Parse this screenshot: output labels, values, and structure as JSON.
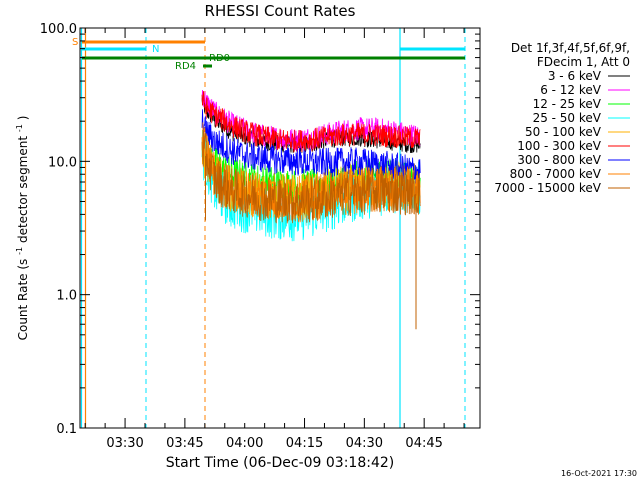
{
  "chart_data": {
    "type": "line",
    "title": "RHESSI Count Rates",
    "xlabel": "Start Time (06-Dec-09 03:18:42)",
    "ylabel_main": "Count Rate (s",
    "ylabel_sup1": "-1",
    "ylabel_mid": " detector segment",
    "ylabel_sup2": "-1",
    "ylabel_end": ")",
    "y_scale": "log",
    "ylim": [
      0.1,
      100.0
    ],
    "y_ticks": [
      {
        "value": 0.1,
        "label": "0.1"
      },
      {
        "value": 1.0,
        "label": "1.0"
      },
      {
        "value": 10.0,
        "label": "10.0"
      },
      {
        "value": 100.0,
        "label": "100.0"
      }
    ],
    "x_unit": "minutes after 03:18:42",
    "xlim": [
      0,
      100.3
    ],
    "x_ticks": [
      {
        "value": 11.3,
        "label": "03:30"
      },
      {
        "value": 26.3,
        "label": "03:45"
      },
      {
        "value": 41.3,
        "label": "04:00"
      },
      {
        "value": 56.3,
        "label": "04:15"
      },
      {
        "value": 71.3,
        "label": "04:30"
      },
      {
        "value": 86.3,
        "label": "04:45"
      }
    ],
    "grid": false,
    "legend_placement": "right",
    "legend_header": [
      "Det 1f,3f,4f,5f,6f,9f,",
      "FDecim 1, Att 0"
    ],
    "data_start": 30.6,
    "data_end": 85.3,
    "series": [
      {
        "name": "3 - 6 keV",
        "color": "#000000",
        "x": [
          31,
          34,
          38,
          42,
          46,
          50,
          54,
          58,
          62,
          66,
          70,
          74,
          78,
          82,
          85
        ],
        "y": [
          25,
          20,
          16.5,
          15,
          14,
          13.5,
          13.3,
          13.5,
          14.5,
          15,
          15,
          14.5,
          14,
          13.5,
          13.2
        ]
      },
      {
        "name": "6 - 12 keV",
        "color": "#ff00ff",
        "x": [
          31,
          34,
          38,
          42,
          46,
          50,
          54,
          58,
          62,
          66,
          70,
          74,
          78,
          82,
          85
        ],
        "y": [
          29,
          23,
          19,
          17,
          15.5,
          15,
          14.5,
          15,
          16,
          17,
          17.5,
          17.5,
          17,
          16,
          15.5
        ]
      },
      {
        "name": "12 - 25 keV",
        "color": "#00ff00",
        "x": [
          31,
          34,
          38,
          42,
          46,
          50,
          54,
          58,
          62,
          66,
          70,
          74,
          78,
          82,
          85
        ],
        "y": [
          12.5,
          9.5,
          8,
          7.5,
          7,
          6.8,
          6.5,
          6.5,
          6.8,
          7.2,
          7.5,
          7.8,
          7.8,
          7.5,
          7.3
        ]
      },
      {
        "name": "25 - 50 keV",
        "color": "#00ffff",
        "x": [
          31,
          34,
          38,
          42,
          46,
          50,
          54,
          58,
          62,
          66,
          70,
          74,
          78,
          82,
          85
        ],
        "y": [
          10.5,
          6,
          4.8,
          4.5,
          4.2,
          4.0,
          3.9,
          4.1,
          4.6,
          5.1,
          5.6,
          6.0,
          6.2,
          6.3,
          6.3
        ]
      },
      {
        "name": "50 - 100 keV",
        "color": "#ffb000",
        "x": [
          31,
          34,
          38,
          42,
          46,
          50,
          54,
          58,
          62,
          66,
          70,
          74,
          78,
          82,
          85
        ],
        "y": [
          11,
          7.5,
          6.2,
          5.8,
          5.6,
          5.5,
          5.4,
          5.5,
          5.9,
          6.3,
          6.6,
          6.8,
          6.8,
          6.7,
          6.6
        ]
      },
      {
        "name": "100 - 300 keV",
        "color": "#ff0000",
        "x": [
          31,
          34,
          38,
          42,
          46,
          50,
          54,
          58,
          62,
          66,
          70,
          74,
          78,
          82,
          85
        ],
        "y": [
          26,
          22,
          18.5,
          16.5,
          15.2,
          14.5,
          14.2,
          14.5,
          15.2,
          15.8,
          16,
          15.8,
          15.5,
          15,
          14.8
        ]
      },
      {
        "name": "300 - 800 keV",
        "color": "#0000ff",
        "x": [
          31,
          34,
          38,
          42,
          46,
          50,
          54,
          58,
          62,
          66,
          70,
          74,
          78,
          82,
          85
        ],
        "y": [
          17.5,
          14,
          12,
          11,
          10.5,
          10.2,
          10,
          9.8,
          9.8,
          9.9,
          9.9,
          9.6,
          9.2,
          8.8,
          8.6
        ]
      },
      {
        "name": "800 - 7000 keV",
        "color": "#ff8000",
        "x": [
          31,
          34,
          38,
          42,
          46,
          50,
          54,
          58,
          62,
          66,
          70,
          74,
          78,
          82,
          85
        ],
        "y": [
          12,
          7.5,
          6.2,
          5.8,
          5.5,
          5.3,
          5.2,
          5.3,
          5.6,
          5.9,
          6.1,
          6.2,
          6.2,
          6.1,
          5.9
        ]
      },
      {
        "name": "7000 - 15000 keV",
        "color": "#c06000",
        "x": [
          31,
          34,
          38,
          42,
          46,
          50,
          54,
          58,
          62,
          66,
          70,
          74,
          78,
          82,
          85
        ],
        "y": [
          11.5,
          7.2,
          6.0,
          5.6,
          5.3,
          5.1,
          5.0,
          5.1,
          5.4,
          5.7,
          5.9,
          6.0,
          6.0,
          5.9,
          5.7
        ]
      }
    ],
    "annotations": [
      {
        "text": "S",
        "color": "#ff8000"
      },
      {
        "text": "N",
        "color": "#00e5ff"
      },
      {
        "text": "RD4",
        "color": "#008000"
      },
      {
        "text": "RD0",
        "color": "#008000"
      }
    ],
    "footer_date": "16-Oct-2021 17:30"
  }
}
